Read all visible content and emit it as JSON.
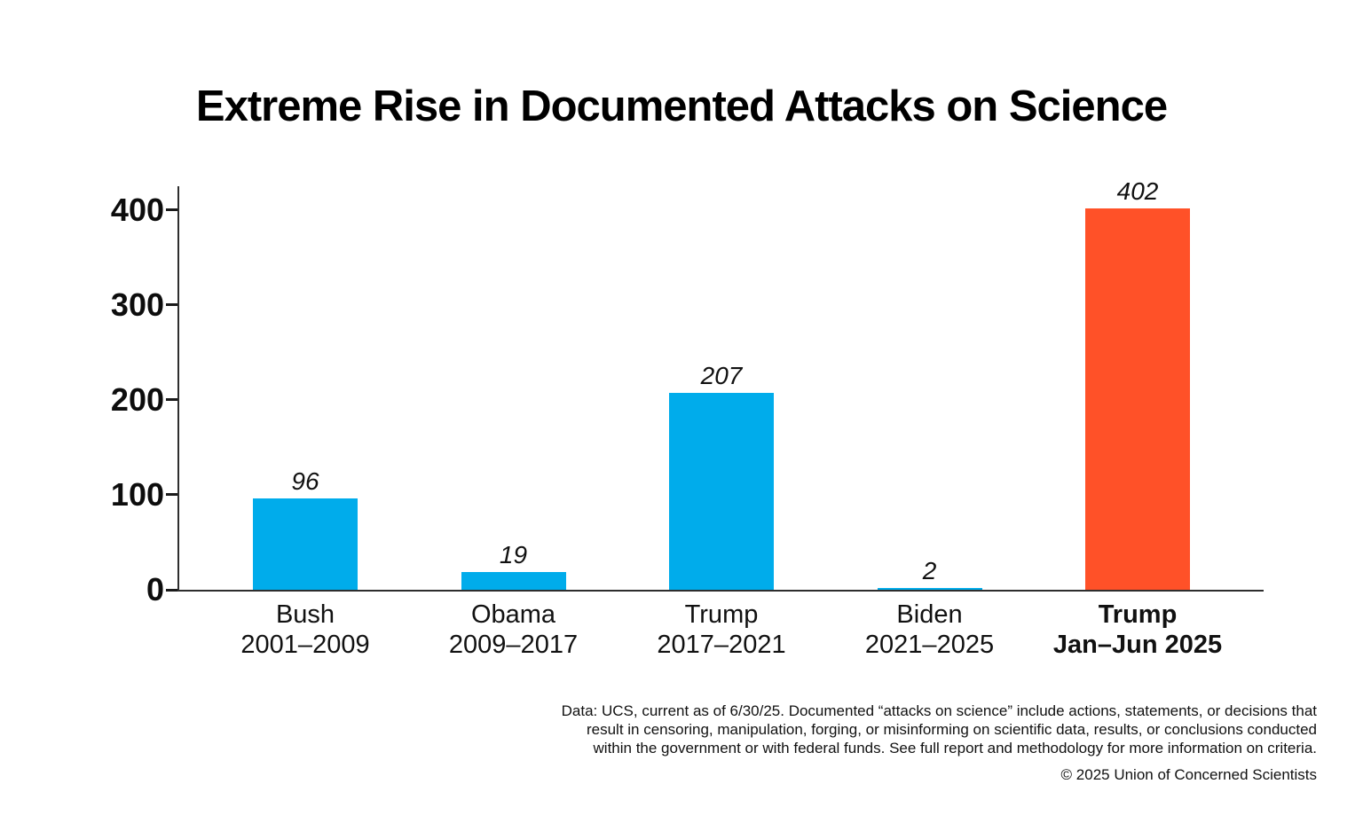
{
  "chart_data": {
    "type": "bar",
    "title": "Extreme Rise in Documented Attacks on Science",
    "categories": [
      [
        "Bush",
        "2001–2009"
      ],
      [
        "Obama",
        "2009–2017"
      ],
      [
        "Trump",
        "2017–2021"
      ],
      [
        "Biden",
        "2021–2025"
      ],
      [
        "Trump",
        "Jan–Jun 2025"
      ]
    ],
    "values": [
      96,
      19,
      207,
      2,
      402
    ],
    "value_labels": [
      "96",
      "19",
      "207",
      "2",
      "402"
    ],
    "bar_colors": [
      "#00ACEB",
      "#00ACEB",
      "#00ACEB",
      "#00ACEB",
      "#FF5128"
    ],
    "emphasized_index": 4,
    "xlabel": "",
    "ylabel": "",
    "yticks": [
      0,
      100,
      200,
      300,
      400
    ],
    "ylim": [
      0,
      425
    ],
    "grid": false,
    "legend": null
  },
  "footnote": {
    "lines": [
      "Data: UCS, current as of 6/30/25. Documented “attacks on science” include actions, statements, or decisions that",
      "result in censoring, manipulation, forging, or misinforming on scientific data, results, or conclusions conducted",
      "within the government or with federal funds. See full report and methodology for more information on criteria."
    ],
    "copyright": "© 2025 Union of Concerned Scientists"
  },
  "colors": {
    "bar_blue": "#00ACEB",
    "bar_orange": "#FF5128",
    "axis": "#2e2e2e",
    "text": "#111111",
    "background": "#ffffff"
  }
}
